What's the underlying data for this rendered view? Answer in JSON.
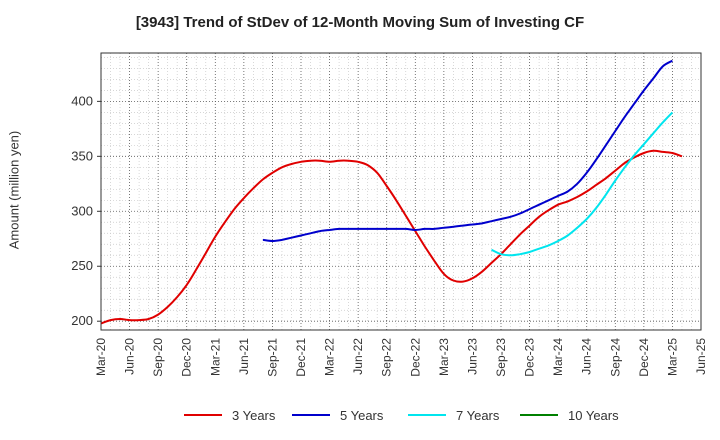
{
  "chart_data": {
    "type": "line",
    "title": "[3943]  Trend of StDev of 12-Month Moving Sum of Investing CF",
    "xlabel": "",
    "ylabel": "Amount (million yen)",
    "x_ticks": [
      "Mar-20",
      "Jun-20",
      "Sep-20",
      "Dec-20",
      "Mar-21",
      "Jun-21",
      "Sep-21",
      "Dec-21",
      "Mar-22",
      "Jun-22",
      "Sep-22",
      "Dec-22",
      "Mar-23",
      "Jun-23",
      "Sep-23",
      "Dec-23",
      "Mar-24",
      "Jun-24",
      "Sep-24",
      "Dec-24",
      "Mar-25",
      "Jun-25"
    ],
    "y_ticks": [
      200,
      250,
      300,
      350,
      400
    ],
    "ylim": [
      192,
      444
    ],
    "grid": true,
    "legend_position": "bottom",
    "series": [
      {
        "name": "3 Years",
        "color": "#e00000",
        "points": [
          [
            "2020-03",
            198
          ],
          [
            "2020-04",
            201
          ],
          [
            "2020-05",
            202
          ],
          [
            "2020-06",
            201
          ],
          [
            "2020-07",
            201
          ],
          [
            "2020-08",
            202
          ],
          [
            "2020-09",
            206
          ],
          [
            "2020-10",
            213
          ],
          [
            "2020-11",
            222
          ],
          [
            "2020-12",
            233
          ],
          [
            "2021-01",
            247
          ],
          [
            "2021-02",
            262
          ],
          [
            "2021-03",
            277
          ],
          [
            "2021-04",
            290
          ],
          [
            "2021-05",
            302
          ],
          [
            "2021-06",
            312
          ],
          [
            "2021-07",
            321
          ],
          [
            "2021-08",
            329
          ],
          [
            "2021-09",
            335
          ],
          [
            "2021-10",
            340
          ],
          [
            "2021-11",
            343
          ],
          [
            "2021-12",
            345
          ],
          [
            "2022-01",
            346
          ],
          [
            "2022-02",
            346
          ],
          [
            "2022-03",
            345
          ],
          [
            "2022-04",
            346
          ],
          [
            "2022-05",
            346
          ],
          [
            "2022-06",
            345
          ],
          [
            "2022-07",
            342
          ],
          [
            "2022-08",
            335
          ],
          [
            "2022-09",
            323
          ],
          [
            "2022-10",
            310
          ],
          [
            "2022-11",
            296
          ],
          [
            "2022-12",
            282
          ],
          [
            "2023-01",
            268
          ],
          [
            "2023-02",
            255
          ],
          [
            "2023-03",
            243
          ],
          [
            "2023-04",
            237
          ],
          [
            "2023-05",
            236
          ],
          [
            "2023-06",
            239
          ],
          [
            "2023-07",
            245
          ],
          [
            "2023-08",
            253
          ],
          [
            "2023-09",
            261
          ],
          [
            "2023-10",
            270
          ],
          [
            "2023-11",
            279
          ],
          [
            "2023-12",
            287
          ],
          [
            "2024-01",
            295
          ],
          [
            "2024-02",
            301
          ],
          [
            "2024-03",
            306
          ],
          [
            "2024-04",
            309
          ],
          [
            "2024-05",
            313
          ],
          [
            "2024-06",
            318
          ],
          [
            "2024-07",
            324
          ],
          [
            "2024-08",
            330
          ],
          [
            "2024-09",
            337
          ],
          [
            "2024-10",
            344
          ],
          [
            "2024-11",
            349
          ],
          [
            "2024-12",
            353
          ],
          [
            "2025-01",
            355
          ],
          [
            "2025-02",
            354
          ],
          [
            "2025-03",
            353
          ],
          [
            "2025-04",
            350
          ]
        ]
      },
      {
        "name": "5 Years",
        "color": "#0000cc",
        "points": [
          [
            "2021-08",
            274
          ],
          [
            "2021-09",
            273
          ],
          [
            "2021-10",
            274
          ],
          [
            "2021-11",
            276
          ],
          [
            "2021-12",
            278
          ],
          [
            "2022-01",
            280
          ],
          [
            "2022-02",
            282
          ],
          [
            "2022-03",
            283
          ],
          [
            "2022-04",
            284
          ],
          [
            "2022-05",
            284
          ],
          [
            "2022-06",
            284
          ],
          [
            "2022-07",
            284
          ],
          [
            "2022-08",
            284
          ],
          [
            "2022-09",
            284
          ],
          [
            "2022-10",
            284
          ],
          [
            "2022-11",
            284
          ],
          [
            "2022-12",
            283
          ],
          [
            "2023-01",
            284
          ],
          [
            "2023-02",
            284
          ],
          [
            "2023-03",
            285
          ],
          [
            "2023-04",
            286
          ],
          [
            "2023-05",
            287
          ],
          [
            "2023-06",
            288
          ],
          [
            "2023-07",
            289
          ],
          [
            "2023-08",
            291
          ],
          [
            "2023-09",
            293
          ],
          [
            "2023-10",
            295
          ],
          [
            "2023-11",
            298
          ],
          [
            "2023-12",
            302
          ],
          [
            "2024-01",
            306
          ],
          [
            "2024-02",
            310
          ],
          [
            "2024-03",
            314
          ],
          [
            "2024-04",
            318
          ],
          [
            "2024-05",
            325
          ],
          [
            "2024-06",
            335
          ],
          [
            "2024-07",
            347
          ],
          [
            "2024-08",
            360
          ],
          [
            "2024-09",
            373
          ],
          [
            "2024-10",
            386
          ],
          [
            "2024-11",
            398
          ],
          [
            "2024-12",
            410
          ],
          [
            "2025-01",
            421
          ],
          [
            "2025-02",
            432
          ],
          [
            "2025-03",
            437
          ]
        ]
      },
      {
        "name": "7 Years",
        "color": "#00e5ee",
        "points": [
          [
            "2023-08",
            265
          ],
          [
            "2023-09",
            261
          ],
          [
            "2023-10",
            260
          ],
          [
            "2023-11",
            261
          ],
          [
            "2023-12",
            263
          ],
          [
            "2024-01",
            266
          ],
          [
            "2024-02",
            269
          ],
          [
            "2024-03",
            273
          ],
          [
            "2024-04",
            278
          ],
          [
            "2024-05",
            285
          ],
          [
            "2024-06",
            293
          ],
          [
            "2024-07",
            303
          ],
          [
            "2024-08",
            315
          ],
          [
            "2024-09",
            328
          ],
          [
            "2024-10",
            340
          ],
          [
            "2024-11",
            351
          ],
          [
            "2024-12",
            361
          ],
          [
            "2025-01",
            371
          ],
          [
            "2025-02",
            381
          ],
          [
            "2025-03",
            390
          ]
        ]
      },
      {
        "name": "10 Years",
        "color": "#008000",
        "points": []
      }
    ]
  }
}
